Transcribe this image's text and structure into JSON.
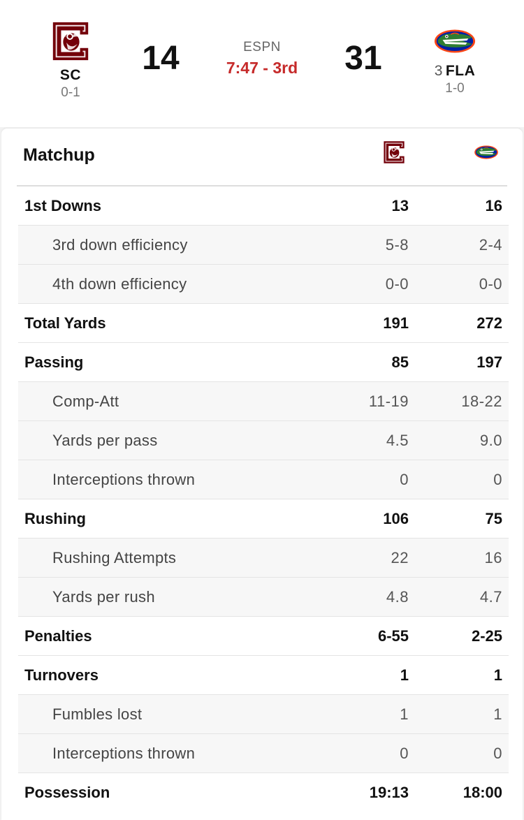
{
  "game": {
    "network": "ESPN",
    "clock": "7:47 - 3rd"
  },
  "away_team": {
    "abbr": "SC",
    "rank": "",
    "record": "0-1",
    "score": "14",
    "logo_icon": "gamecocks-logo-icon",
    "colors": {
      "primary": "#73000a",
      "accent": "#ffffff"
    }
  },
  "home_team": {
    "abbr": "FLA",
    "rank": "3",
    "record": "1-0",
    "score": "31",
    "logo_icon": "gators-logo-icon",
    "colors": {
      "primary": "#0021a5",
      "accent": "#fa4616",
      "green": "#2e7d32"
    }
  },
  "matchup": {
    "title": "Matchup",
    "rows": [
      {
        "label": "1st Downs",
        "away": "13",
        "home": "16",
        "level": "main"
      },
      {
        "label": "3rd down efficiency",
        "away": "5-8",
        "home": "2-4",
        "level": "sub"
      },
      {
        "label": "4th down efficiency",
        "away": "0-0",
        "home": "0-0",
        "level": "sub"
      },
      {
        "label": "Total Yards",
        "away": "191",
        "home": "272",
        "level": "main"
      },
      {
        "label": "Passing",
        "away": "85",
        "home": "197",
        "level": "main"
      },
      {
        "label": "Comp-Att",
        "away": "11-19",
        "home": "18-22",
        "level": "sub"
      },
      {
        "label": "Yards per pass",
        "away": "4.5",
        "home": "9.0",
        "level": "sub"
      },
      {
        "label": "Interceptions thrown",
        "away": "0",
        "home": "0",
        "level": "sub"
      },
      {
        "label": "Rushing",
        "away": "106",
        "home": "75",
        "level": "main"
      },
      {
        "label": "Rushing Attempts",
        "away": "22",
        "home": "16",
        "level": "sub"
      },
      {
        "label": "Yards per rush",
        "away": "4.8",
        "home": "4.7",
        "level": "sub"
      },
      {
        "label": "Penalties",
        "away": "6-55",
        "home": "2-25",
        "level": "main"
      },
      {
        "label": "Turnovers",
        "away": "1",
        "home": "1",
        "level": "main"
      },
      {
        "label": "Fumbles lost",
        "away": "1",
        "home": "1",
        "level": "sub"
      },
      {
        "label": "Interceptions thrown",
        "away": "0",
        "home": "0",
        "level": "sub"
      },
      {
        "label": "Possession",
        "away": "19:13",
        "home": "18:00",
        "level": "main"
      }
    ]
  }
}
